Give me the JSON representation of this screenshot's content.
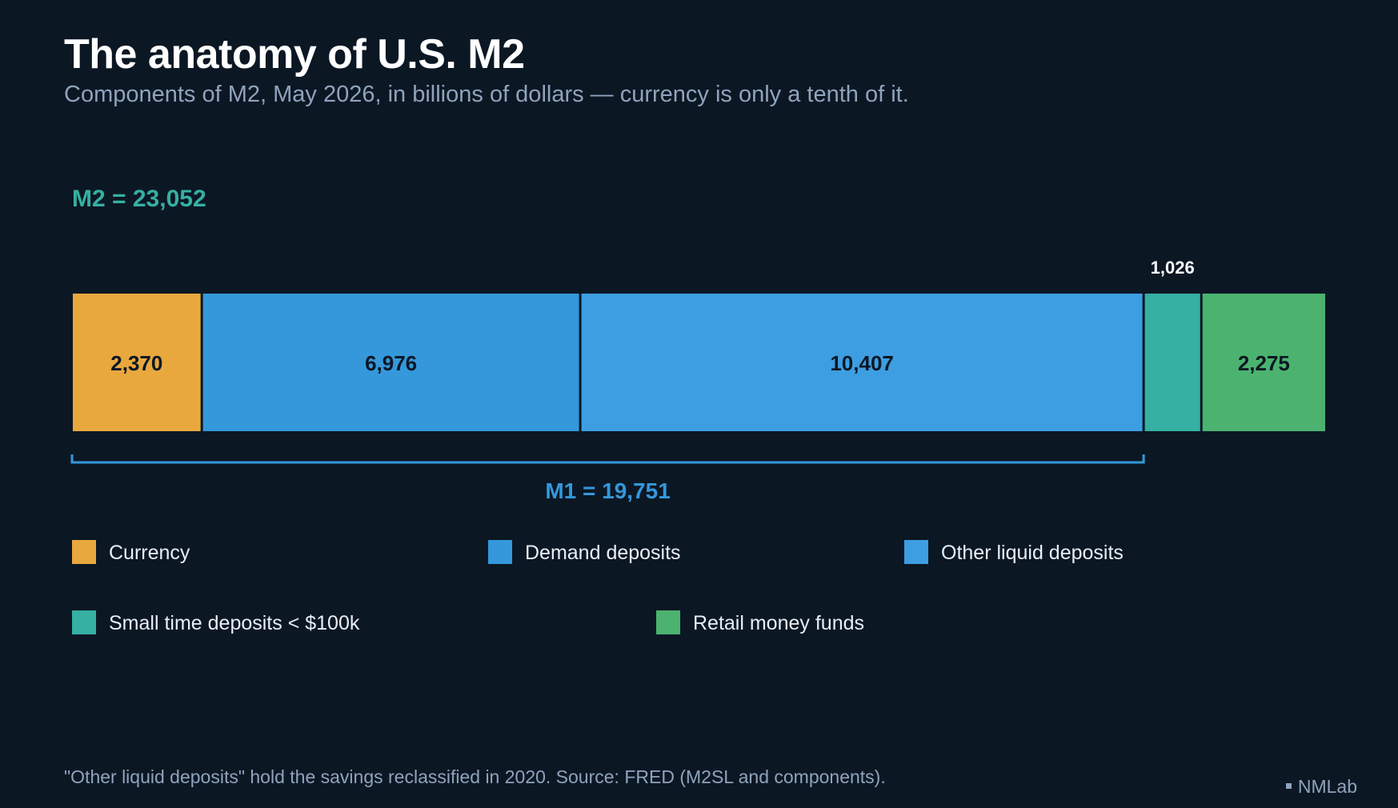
{
  "header": {
    "title": "The anatomy of U.S. M2",
    "subtitle": "Components of M2, May 2026, in billions of dollars — currency is only a tenth of it."
  },
  "footer": {
    "note": "\"Other liquid deposits\" hold the savings reclassified in 2020. Source: FRED (M2SL and components).",
    "brand": "NMLab"
  },
  "chart_data": {
    "type": "bar",
    "orientation": "horizontal-stacked",
    "categories": [
      "Currency",
      "Demand deposits",
      "Other liquid deposits",
      "Small time deposits < $100k",
      "Retail money funds"
    ],
    "values": [
      2370,
      6976,
      10407,
      1026,
      2275
    ],
    "value_labels": [
      "2,370",
      "6,976",
      "10,407",
      "1,026",
      "2,275"
    ],
    "colors": [
      "#e8a83e",
      "#3498db",
      "#3d9ee1",
      "#35b0a2",
      "#4bb36f"
    ],
    "total": {
      "label": "M2 = 23,052",
      "value": 23052,
      "color": "#35b0a2"
    },
    "bracket": {
      "label": "M1 = 19,751",
      "value": 19751,
      "covers": [
        0,
        1,
        2
      ],
      "color": "#3498db"
    },
    "legend": {
      "placement": "bottom",
      "items": [
        {
          "label": "Currency",
          "color": "#e8a83e"
        },
        {
          "label": "Demand deposits",
          "color": "#3498db"
        },
        {
          "label": "Other liquid deposits",
          "color": "#3d9ee1"
        },
        {
          "label": "Small time deposits < $100k",
          "color": "#35b0a2"
        },
        {
          "label": "Retail money funds",
          "color": "#4bb36f"
        }
      ]
    },
    "grid": false
  }
}
